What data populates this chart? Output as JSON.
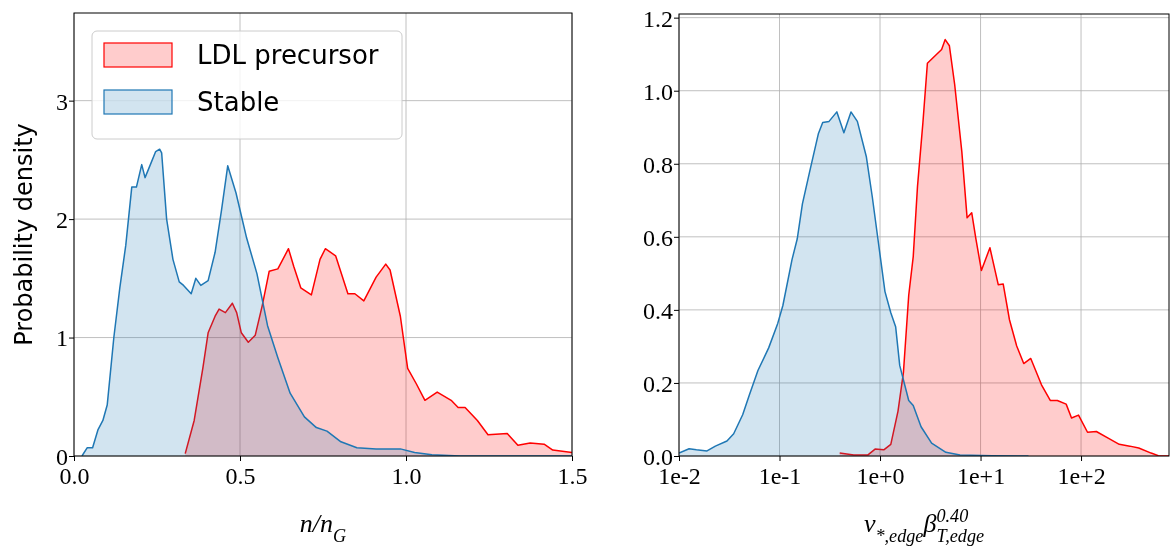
{
  "chart_data": [
    {
      "type": "area",
      "xlabel": "n/n$_{G}$",
      "ylabel": "Probability density",
      "xlim": [
        0,
        1.5
      ],
      "ylim": [
        0,
        3.74
      ],
      "xticks": [
        {
          "value": 0,
          "label": "0.0"
        },
        {
          "value": 0.5,
          "label": "0.5"
        },
        {
          "value": 1,
          "label": "1.0"
        },
        {
          "value": 1.5,
          "label": "1.5"
        }
      ],
      "yticks": [
        0,
        1,
        2,
        3
      ],
      "grid": true,
      "legend": "top left",
      "series": [
        {
          "name": "LDL precursor",
          "color": "#ff0000",
          "x": [
            0.335,
            0.362,
            0.388,
            0.404,
            0.425,
            0.437,
            0.456,
            0.477,
            0.49,
            0.504,
            0.525,
            0.546,
            0.567,
            0.588,
            0.614,
            0.646,
            0.662,
            0.683,
            0.715,
            0.741,
            0.757,
            0.788,
            0.825,
            0.846,
            0.873,
            0.91,
            0.939,
            0.952,
            0.983,
            1.005,
            1.031,
            1.057,
            1.094,
            1.136,
            1.157,
            1.178,
            1.215,
            1.247,
            1.305,
            1.337,
            1.374,
            1.416,
            1.442,
            1.5
          ],
          "values": [
            0.02,
            0.3,
            0.74,
            1.04,
            1.18,
            1.24,
            1.21,
            1.29,
            1.21,
            1.04,
            0.96,
            1.02,
            1.27,
            1.56,
            1.58,
            1.75,
            1.6,
            1.42,
            1.36,
            1.66,
            1.75,
            1.69,
            1.37,
            1.37,
            1.31,
            1.51,
            1.62,
            1.57,
            1.18,
            0.74,
            0.61,
            0.47,
            0.54,
            0.47,
            0.41,
            0.41,
            0.3,
            0.18,
            0.19,
            0.09,
            0.11,
            0.1,
            0.05,
            0.03
          ]
        },
        {
          "name": "Stable",
          "color": "#1f77b4",
          "x": [
            0.024,
            0.04,
            0.056,
            0.072,
            0.087,
            0.1,
            0.12,
            0.138,
            0.156,
            0.174,
            0.188,
            0.204,
            0.214,
            0.23,
            0.246,
            0.258,
            0.264,
            0.279,
            0.298,
            0.317,
            0.33,
            0.353,
            0.367,
            0.382,
            0.404,
            0.425,
            0.444,
            0.463,
            0.488,
            0.52,
            0.551,
            0.583,
            0.614,
            0.651,
            0.694,
            0.73,
            0.762,
            0.804,
            0.852,
            0.91,
            0.983,
            1.026,
            1.078,
            1.163,
            1.5
          ],
          "values": [
            0,
            0.07,
            0.07,
            0.22,
            0.3,
            0.43,
            1.0,
            1.42,
            1.78,
            2.27,
            2.27,
            2.46,
            2.35,
            2.46,
            2.57,
            2.59,
            2.56,
            2.0,
            1.66,
            1.47,
            1.44,
            1.37,
            1.5,
            1.44,
            1.48,
            1.72,
            2.07,
            2.45,
            2.22,
            1.84,
            1.54,
            1.1,
            0.83,
            0.53,
            0.33,
            0.24,
            0.21,
            0.12,
            0.07,
            0.06,
            0.06,
            0.03,
            0.01,
            0,
            0
          ]
        }
      ]
    },
    {
      "type": "area",
      "xlabel": "ν$_{*,edge}$β$^{0.40}$$_{T,edge}$",
      "log": "x",
      "xlim": [
        0.01,
        750
      ],
      "ylim": [
        0,
        1.21
      ],
      "xticks": [
        {
          "value": 0.01,
          "label": "1e-2"
        },
        {
          "value": 0.1,
          "label": "1e-1"
        },
        {
          "value": 1,
          "label": "1e+0"
        },
        {
          "value": 10,
          "label": "1e+1"
        },
        {
          "value": 100,
          "label": "1e+2"
        }
      ],
      "yticks": [
        {
          "value": 0,
          "label": "0.0"
        },
        {
          "value": 0.2,
          "label": "0.2"
        },
        {
          "value": 0.4,
          "label": "0.4"
        },
        {
          "value": 0.6,
          "label": "0.6"
        },
        {
          "value": 0.8,
          "label": "0.8"
        },
        {
          "value": 1,
          "label": "1.0"
        },
        {
          "value": 1.2,
          "label": "1.2"
        }
      ],
      "grid": true,
      "series": [
        {
          "color": "#ff0000",
          "x": [
            0.397,
            0.548,
            0.759,
            0.893,
            1.09,
            1.28,
            1.51,
            1.71,
            1.93,
            2.14,
            2.36,
            2.67,
            2.96,
            3.19,
            3.78,
            4.1,
            4.45,
            4.9,
            5.53,
            6.51,
            7.35,
            8.17,
            9.0,
            10.2,
            12.4,
            15.0,
            16.8,
            19.4,
            22.9,
            26.9,
            31.6,
            40.4,
            49.4,
            58.1,
            71.1,
            80.4,
            94.4,
            116,
            142,
            188,
            240,
            306,
            375,
            498,
            587,
            750
          ],
          "values": [
            0.008,
            0.003,
            0.003,
            0.019,
            0.017,
            0.032,
            0.123,
            0.229,
            0.44,
            0.546,
            0.738,
            0.912,
            1.075,
            null,
            null,
            1.113,
            1.14,
            1.123,
            1.017,
            0.834,
            0.652,
            0.666,
            0.594,
            0.508,
            0.57,
            0.469,
            0.471,
            0.373,
            0.301,
            0.253,
            0.267,
            0.195,
            0.152,
            0.152,
            0.142,
            0.104,
            0.112,
            0.065,
            0.067,
            0.048,
            0.032,
            0.027,
            0.022,
            0.008,
            0.001,
            0
          ]
        },
        {
          "color": "#1f77b4",
          "x": [
            0.01,
            0.0126,
            0.0149,
            0.019,
            0.023,
            0.03,
            0.035,
            0.043,
            0.05,
            0.061,
            0.078,
            0.096,
            0.108,
            0.133,
            0.15,
            0.169,
            0.199,
            0.244,
            0.269,
            0.311,
            0.372,
            0.437,
            0.514,
            0.595,
            0.73,
            0.838,
            0.953,
            1.12,
            1.28,
            1.43,
            1.57,
            1.93,
            2.14,
            2.56,
            3.26,
            4.52,
            6.25,
            13,
            30
          ],
          "values": [
            0.008,
            0.02,
            0.017,
            0.014,
            0.027,
            0.041,
            0.061,
            0.113,
            0.166,
            0.234,
            0.296,
            0.363,
            0.412,
            0.537,
            0.594,
            0.69,
            0.777,
            0.883,
            0.913,
            0.916,
            0.942,
            0.885,
            0.942,
            0.916,
            0.82,
            0.709,
            0.594,
            0.45,
            0.392,
            0.354,
            0.248,
            0.152,
            0.138,
            0.08,
            0.035,
            0.01,
            0.003,
            0.001,
            0
          ]
        }
      ]
    }
  ]
}
